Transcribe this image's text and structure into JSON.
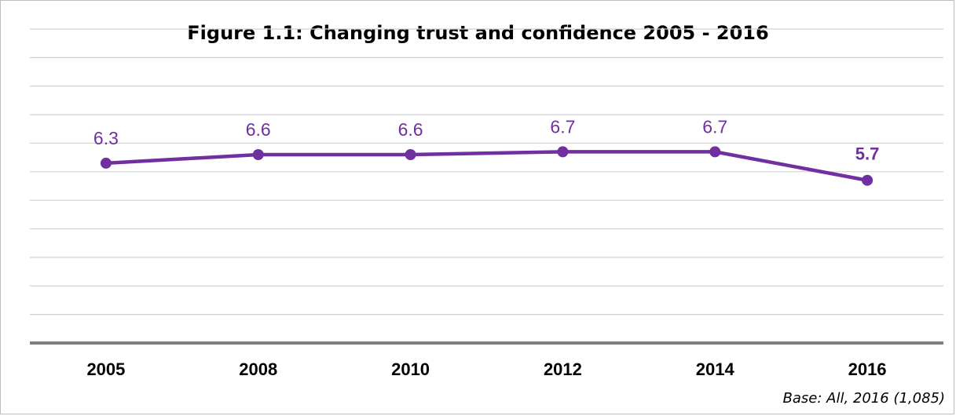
{
  "chart_data": {
    "type": "line",
    "title": "Figure 1.1: Changing trust and confidence 2005 - 2016",
    "categories": [
      "2005",
      "2008",
      "2010",
      "2012",
      "2014",
      "2016"
    ],
    "series": [
      {
        "values": [
          6.3,
          6.6,
          6.6,
          6.7,
          6.7,
          5.7
        ],
        "data_labels": [
          "6.3",
          "6.6",
          "6.6",
          "6.7",
          "6.7",
          "5.7"
        ]
      }
    ],
    "ylim": [
      0,
      11
    ],
    "grid": true,
    "y_axis_labels_visible": false,
    "last_label_bold": true,
    "xlabel": "",
    "ylabel": "",
    "footnote": "Base: All, 2016 (1,085)"
  },
  "colors": {
    "series_line": "#7030A0",
    "gridline": "#d0d0d0",
    "axis_line": "#808080",
    "border": "#bdbdbd"
  }
}
